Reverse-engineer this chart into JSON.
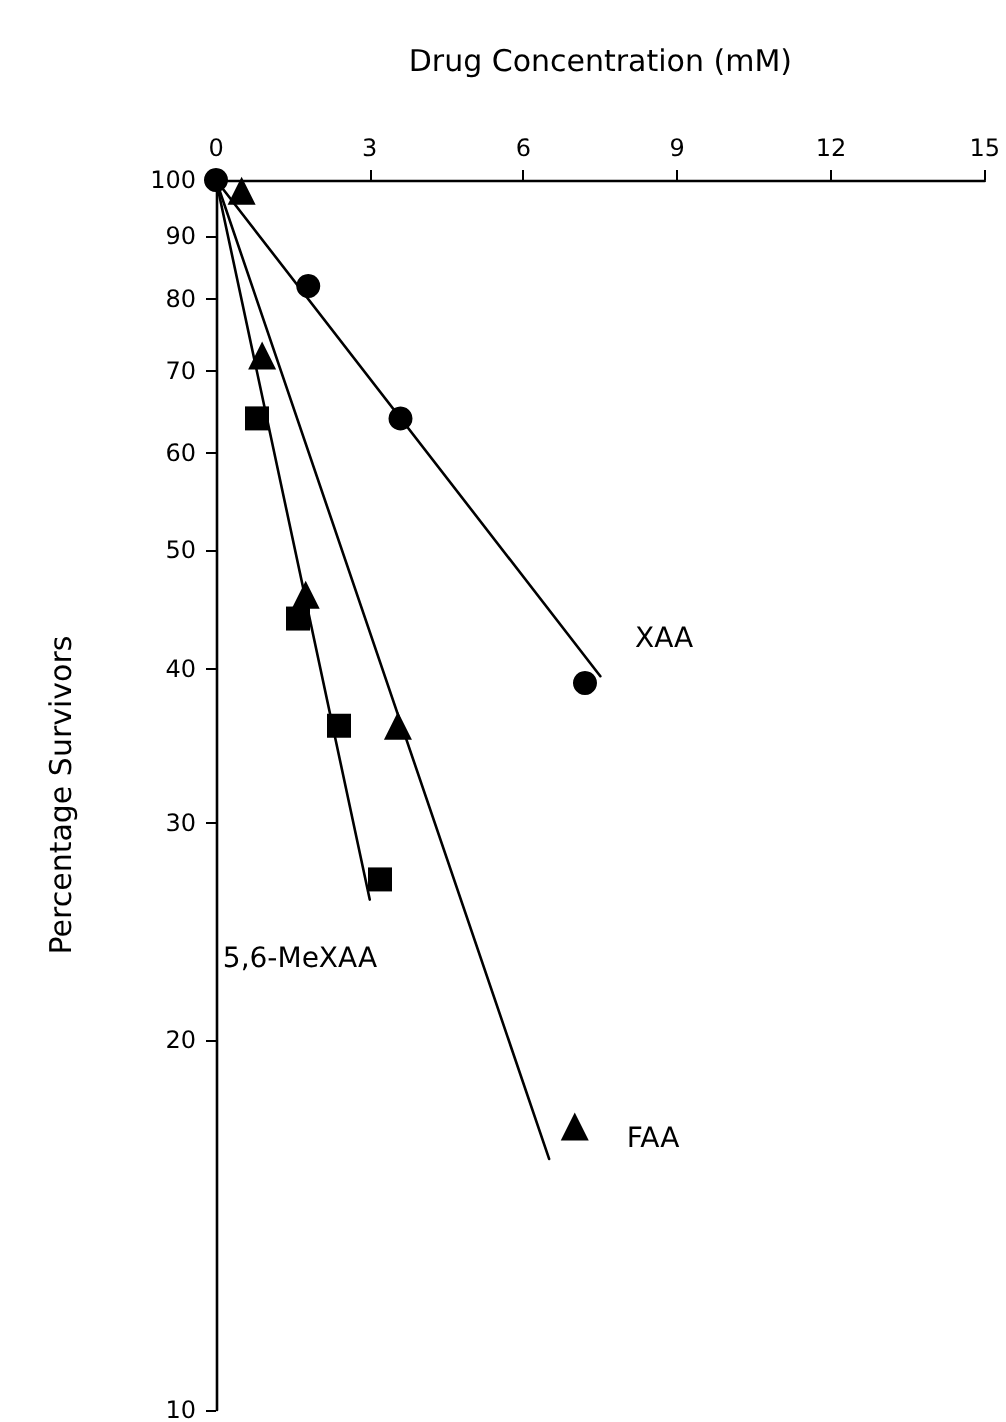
{
  "chart_data": {
    "type": "scatter",
    "xlabel": "Drug Concentration (mM)",
    "ylabel": "Percentage Survivors",
    "xlim": [
      0,
      15
    ],
    "xticks": [
      0,
      3,
      6,
      9,
      12,
      15
    ],
    "ylim": [
      10,
      100
    ],
    "yticks": [
      10,
      20,
      30,
      40,
      50,
      60,
      70,
      80,
      90,
      100
    ],
    "log": "y",
    "grid": false,
    "series": [
      {
        "name": "XAA",
        "color": "#000000",
        "marker": "circle",
        "x": [
          0,
          1.8,
          3.6,
          7.2
        ],
        "values": [
          100,
          82,
          64,
          39
        ]
      },
      {
        "name": "FAA",
        "color": "#000000",
        "marker": "triangle",
        "x": [
          0.5,
          0.9,
          1.75,
          3.55,
          7.0
        ],
        "values": [
          98,
          72,
          46,
          36,
          17
        ]
      },
      {
        "name": "5,6-MeXAA",
        "color": "#000000",
        "marker": "square",
        "x": [
          0.8,
          1.6,
          2.4,
          3.2
        ],
        "values": [
          64,
          44,
          36,
          27
        ]
      },
      {
        "type": "line",
        "color": "#000000",
        "marker": "none",
        "line_style": "solid",
        "x": [
          0,
          7.5
        ],
        "values": [
          100,
          39.5
        ]
      },
      {
        "type": "line",
        "color": "#000000",
        "marker": "none",
        "line_style": "solid",
        "x": [
          0,
          6.5
        ],
        "values": [
          100,
          16
        ]
      },
      {
        "type": "line",
        "color": "#000000",
        "marker": "none",
        "line_style": "solid",
        "x": [
          0,
          3.0
        ],
        "values": [
          100,
          26
        ]
      }
    ]
  }
}
